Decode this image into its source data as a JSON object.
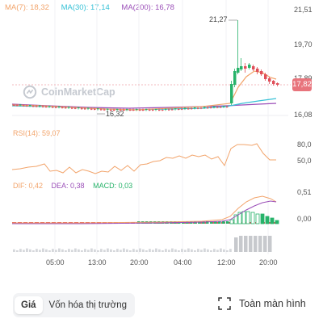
{
  "legend": {
    "ma7": "MA(7): 18,32",
    "ma30": "MA(30): 17,14",
    "ma200": "MA(200): 16,78"
  },
  "colors": {
    "up": "#27b36a",
    "down": "#e0505a",
    "ma7": "#f2a46b",
    "ma30": "#36c1d6",
    "ma200": "#9b4fb8",
    "dif": "#f2a46b",
    "dea": "#9b4fb8",
    "macd": "#27b36a",
    "rsi": "#f2a46b"
  },
  "watermark": "CoinMarketCap",
  "price_axis": [
    "21,51",
    "19,70",
    "17,89",
    "16,08"
  ],
  "current_price": "17,82",
  "high_label": "21,27",
  "low_label": "16,32",
  "rsi": {
    "label": "RSI(14): 59,07",
    "axis": [
      "80,0",
      "50,0"
    ]
  },
  "macd": {
    "dif": "DIF: 0,42",
    "dea": "DEA: 0,38",
    "macd": "MACD: 0,03",
    "axis": [
      "0,51",
      "0,00"
    ]
  },
  "time_axis": [
    "05:00",
    "13:00",
    "20:00",
    "04:00",
    "12:00",
    "20:00"
  ],
  "tabs": [
    "Giá",
    "Vốn hóa thị trường"
  ],
  "fullscreen_label": "Toàn màn hình",
  "chart_data": {
    "type": "line",
    "title": "",
    "xlabel": "",
    "ylabel": "",
    "x": [
      "05:00",
      "13:00",
      "20:00",
      "04:00",
      "12:00",
      "20:00"
    ],
    "ylim": [
      16.08,
      21.51
    ],
    "series": [
      {
        "name": "MA(7)",
        "values": [
          16.55,
          16.5,
          16.5,
          16.55,
          16.9,
          18.32
        ]
      },
      {
        "name": "MA(30)",
        "values": [
          16.5,
          16.45,
          16.45,
          16.5,
          16.7,
          17.14
        ]
      },
      {
        "name": "MA(200)",
        "values": [
          16.6,
          16.55,
          16.55,
          16.55,
          16.6,
          16.78
        ]
      }
    ],
    "annotations": [
      "21,27",
      "16,32",
      "17,82"
    ]
  }
}
